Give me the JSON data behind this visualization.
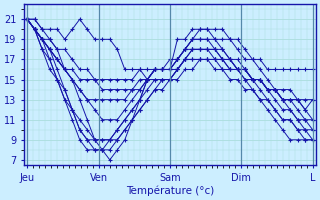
{
  "title": "Température (°c)",
  "xtick_labels": [
    "Jeu",
    "Ven",
    "Sam",
    "Dim",
    "L"
  ],
  "xtick_positions": [
    0,
    24,
    48,
    72,
    96
  ],
  "ylim": [
    6.5,
    22.5
  ],
  "xlim": [
    -1,
    97
  ],
  "yticks": [
    7,
    9,
    11,
    13,
    15,
    17,
    19,
    21
  ],
  "background_color": "#cceeff",
  "grid_color": "#aadddd",
  "line_color": "#1515aa",
  "marker": "+",
  "lines": [
    [
      21,
      21,
      20,
      20,
      20,
      19,
      20,
      21,
      20,
      19,
      19,
      19,
      18,
      16,
      16,
      16,
      15,
      16,
      16,
      16,
      19,
      19,
      20,
      20,
      20,
      19,
      19,
      19,
      18,
      17,
      17,
      17,
      16,
      16,
      16,
      16,
      16,
      16,
      16
    ],
    [
      21,
      20,
      18,
      17,
      15,
      13,
      11,
      9,
      8,
      8,
      8,
      9,
      10,
      11,
      12,
      13,
      15,
      16,
      16,
      16,
      17,
      18,
      19,
      20,
      20,
      20,
      20,
      19,
      19,
      18,
      17,
      16,
      15,
      14,
      13,
      12,
      11,
      10,
      10
    ],
    [
      21,
      20,
      19,
      17,
      15,
      14,
      12,
      10,
      9,
      9,
      9,
      9,
      10,
      11,
      12,
      13,
      14,
      15,
      15,
      15,
      16,
      17,
      18,
      18,
      18,
      17,
      17,
      16,
      16,
      16,
      15,
      15,
      14,
      14,
      13,
      13,
      12,
      11,
      10
    ],
    [
      21,
      20,
      19,
      18,
      17,
      16,
      15,
      14,
      13,
      13,
      13,
      13,
      13,
      13,
      14,
      15,
      15,
      16,
      16,
      16,
      16,
      17,
      17,
      17,
      17,
      17,
      17,
      16,
      16,
      15,
      15,
      15,
      14,
      14,
      13,
      13,
      13,
      12,
      11
    ],
    [
      21,
      20,
      19,
      18,
      16,
      14,
      12,
      10,
      9,
      8,
      8,
      8,
      9,
      10,
      11,
      12,
      13,
      14,
      15,
      15,
      16,
      17,
      18,
      18,
      18,
      18,
      17,
      17,
      16,
      16,
      15,
      14,
      13,
      12,
      11,
      11,
      10,
      9,
      9
    ],
    [
      21,
      21,
      20,
      19,
      18,
      16,
      15,
      13,
      11,
      9,
      8,
      7,
      8,
      9,
      11,
      13,
      15,
      16,
      16,
      16,
      17,
      18,
      19,
      19,
      19,
      19,
      18,
      17,
      16,
      15,
      14,
      13,
      12,
      11,
      10,
      9,
      9,
      9,
      9
    ],
    [
      21,
      20,
      18,
      16,
      15,
      13,
      12,
      11,
      10,
      9,
      9,
      9,
      9,
      10,
      11,
      12,
      13,
      14,
      14,
      15,
      16,
      17,
      17,
      17,
      17,
      16,
      16,
      15,
      15,
      14,
      14,
      13,
      13,
      12,
      11,
      11,
      10,
      10,
      9
    ],
    [
      21,
      20,
      19,
      19,
      18,
      18,
      17,
      16,
      16,
      15,
      15,
      15,
      15,
      15,
      15,
      16,
      16,
      16,
      16,
      17,
      17,
      18,
      18,
      18,
      18,
      18,
      17,
      17,
      16,
      16,
      15,
      15,
      14,
      14,
      13,
      13,
      13,
      12,
      13
    ],
    [
      21,
      20,
      19,
      18,
      17,
      16,
      15,
      14,
      13,
      12,
      11,
      11,
      11,
      12,
      13,
      14,
      15,
      16,
      16,
      16,
      17,
      18,
      19,
      19,
      19,
      18,
      18,
      17,
      17,
      16,
      15,
      15,
      14,
      13,
      12,
      12,
      11,
      11,
      11
    ],
    [
      21,
      20,
      19,
      18,
      17,
      16,
      16,
      15,
      15,
      15,
      14,
      14,
      14,
      14,
      14,
      14,
      15,
      15,
      15,
      15,
      15,
      16,
      16,
      17,
      17,
      17,
      16,
      16,
      16,
      16,
      15,
      15,
      14,
      14,
      14,
      14,
      13,
      13,
      13
    ]
  ]
}
